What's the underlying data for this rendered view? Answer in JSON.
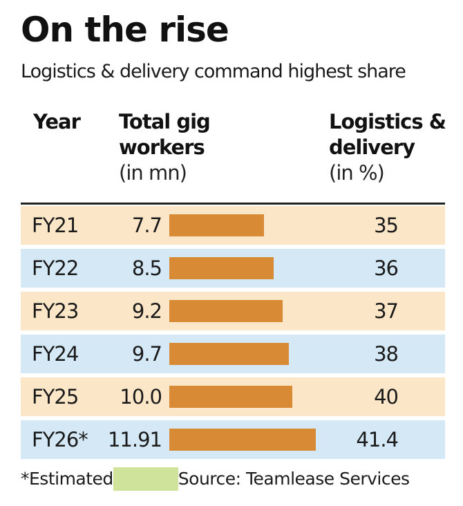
{
  "title": "On the rise",
  "subtitle": "Logistics & delivery command highest share",
  "headers": {
    "year": "Year",
    "total_line1": "Total gig",
    "total_line2": "workers",
    "total_unit": "(in mn)",
    "logistics_line1": "Logistics &",
    "logistics_line2": "delivery",
    "logistics_unit": "(in %)"
  },
  "colors": {
    "bar": "#d98a35",
    "row_odd": "#fbe7c7",
    "row_even": "#d4e8f6",
    "estimated_swatch": "#cfe39a"
  },
  "chart_data": {
    "type": "bar",
    "orientation": "horizontal",
    "categories": [
      "FY21",
      "FY22",
      "FY23",
      "FY24",
      "FY25",
      "FY26*"
    ],
    "series": [
      {
        "name": "Total gig workers",
        "values": [
          7.7,
          8.5,
          9.2,
          9.7,
          10.0,
          11.91
        ]
      }
    ],
    "value_labels": [
      "7.7",
      "8.5",
      "9.2",
      "9.7",
      "10.0",
      "11.91"
    ],
    "logistics_share": [
      "35",
      "36",
      "37",
      "38",
      "40",
      "41.4"
    ],
    "xlim": [
      0,
      11.91
    ]
  },
  "footer": {
    "estimated": "*Estimated",
    "source": "Source: Teamlease Services"
  }
}
